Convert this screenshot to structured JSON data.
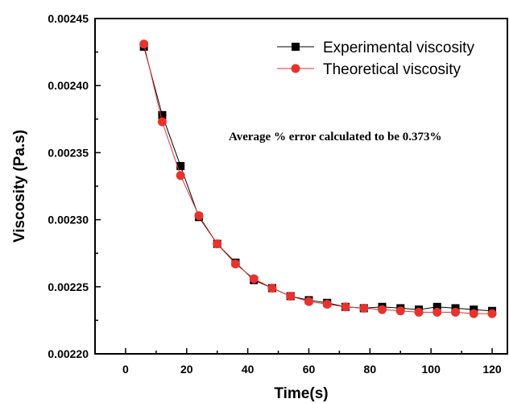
{
  "chart_data": {
    "type": "line",
    "title": "",
    "xlabel": "Time(s)",
    "ylabel": "Viscosity (Pa.s)",
    "xlim": [
      -10,
      125
    ],
    "ylim": [
      0.0022,
      0.00245
    ],
    "xticks": [
      0,
      20,
      40,
      60,
      80,
      100,
      120
    ],
    "xtick_labels": [
      "0",
      "20",
      "40",
      "60",
      "80",
      "100",
      "120"
    ],
    "yticks": [
      0.0022,
      0.00225,
      0.0023,
      0.00235,
      0.0024,
      0.00245
    ],
    "ytick_labels": [
      "0.00220",
      "0.00225",
      "0.00230",
      "0.00235",
      "0.00240",
      "0.00245"
    ],
    "grid": false,
    "legend_position": "top-right",
    "annotation": "Average % error calculated to be 0.373%",
    "x": [
      6,
      12,
      18,
      24,
      30,
      36,
      42,
      48,
      54,
      60,
      66,
      72,
      78,
      84,
      90,
      96,
      102,
      108,
      114,
      120
    ],
    "series": [
      {
        "name": "Experimental viscosity",
        "color": "#000000",
        "marker": "square",
        "values": [
          0.002429,
          0.002378,
          0.00234,
          0.002302,
          0.002282,
          0.002268,
          0.002255,
          0.002249,
          0.002243,
          0.00224,
          0.002238,
          0.002235,
          0.002234,
          0.002235,
          0.002234,
          0.002233,
          0.002235,
          0.002234,
          0.002233,
          0.002232
        ]
      },
      {
        "name": "Theoretical viscosity",
        "color": "#e8322d",
        "marker": "circle",
        "values": [
          0.002431,
          0.002373,
          0.002333,
          0.002303,
          0.002282,
          0.002267,
          0.002256,
          0.002249,
          0.002243,
          0.002239,
          0.002237,
          0.002235,
          0.002234,
          0.002233,
          0.002232,
          0.002231,
          0.002231,
          0.002231,
          0.00223,
          0.00223
        ]
      }
    ]
  }
}
